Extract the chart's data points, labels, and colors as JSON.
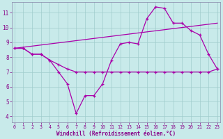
{
  "background_color": "#c8eaea",
  "grid_color": "#a0cccc",
  "line_color": "#aa00aa",
  "xlabel": "Windchill (Refroidissement éolien,°C)",
  "x": [
    0,
    1,
    2,
    3,
    4,
    5,
    6,
    7,
    8,
    9,
    10,
    11,
    12,
    13,
    14,
    15,
    16,
    17,
    18,
    19,
    20,
    21,
    22,
    23
  ],
  "line_zigzag": [
    8.6,
    8.6,
    8.2,
    8.2,
    7.8,
    7.0,
    6.2,
    4.2,
    5.4,
    5.4,
    6.2,
    7.8,
    8.9,
    9.0,
    8.9,
    10.6,
    11.4,
    11.3,
    10.3,
    10.3,
    9.8,
    9.5,
    8.2,
    7.2
  ],
  "line_flat": [
    8.6,
    8.6,
    8.2,
    8.2,
    7.8,
    7.5,
    7.2,
    7.0,
    7.0,
    7.0,
    7.0,
    7.0,
    7.0,
    7.0,
    7.0,
    7.0,
    7.0,
    7.0,
    7.0,
    7.0,
    7.0,
    7.0,
    7.0,
    7.2
  ],
  "line_trend_x": [
    0,
    23
  ],
  "line_trend_y": [
    8.6,
    10.3
  ],
  "ylim": [
    3.6,
    11.7
  ],
  "xlim": [
    -0.3,
    23.3
  ],
  "yticks": [
    4,
    5,
    6,
    7,
    8,
    9,
    10,
    11
  ],
  "xticks": [
    0,
    1,
    2,
    3,
    4,
    5,
    6,
    7,
    8,
    9,
    10,
    11,
    12,
    13,
    14,
    15,
    16,
    17,
    18,
    19,
    20,
    21,
    22,
    23
  ],
  "tick_color": "#880088",
  "xlabel_color": "#880088",
  "spine_color": "#8888aa",
  "lw": 0.9,
  "ms": 3.0
}
